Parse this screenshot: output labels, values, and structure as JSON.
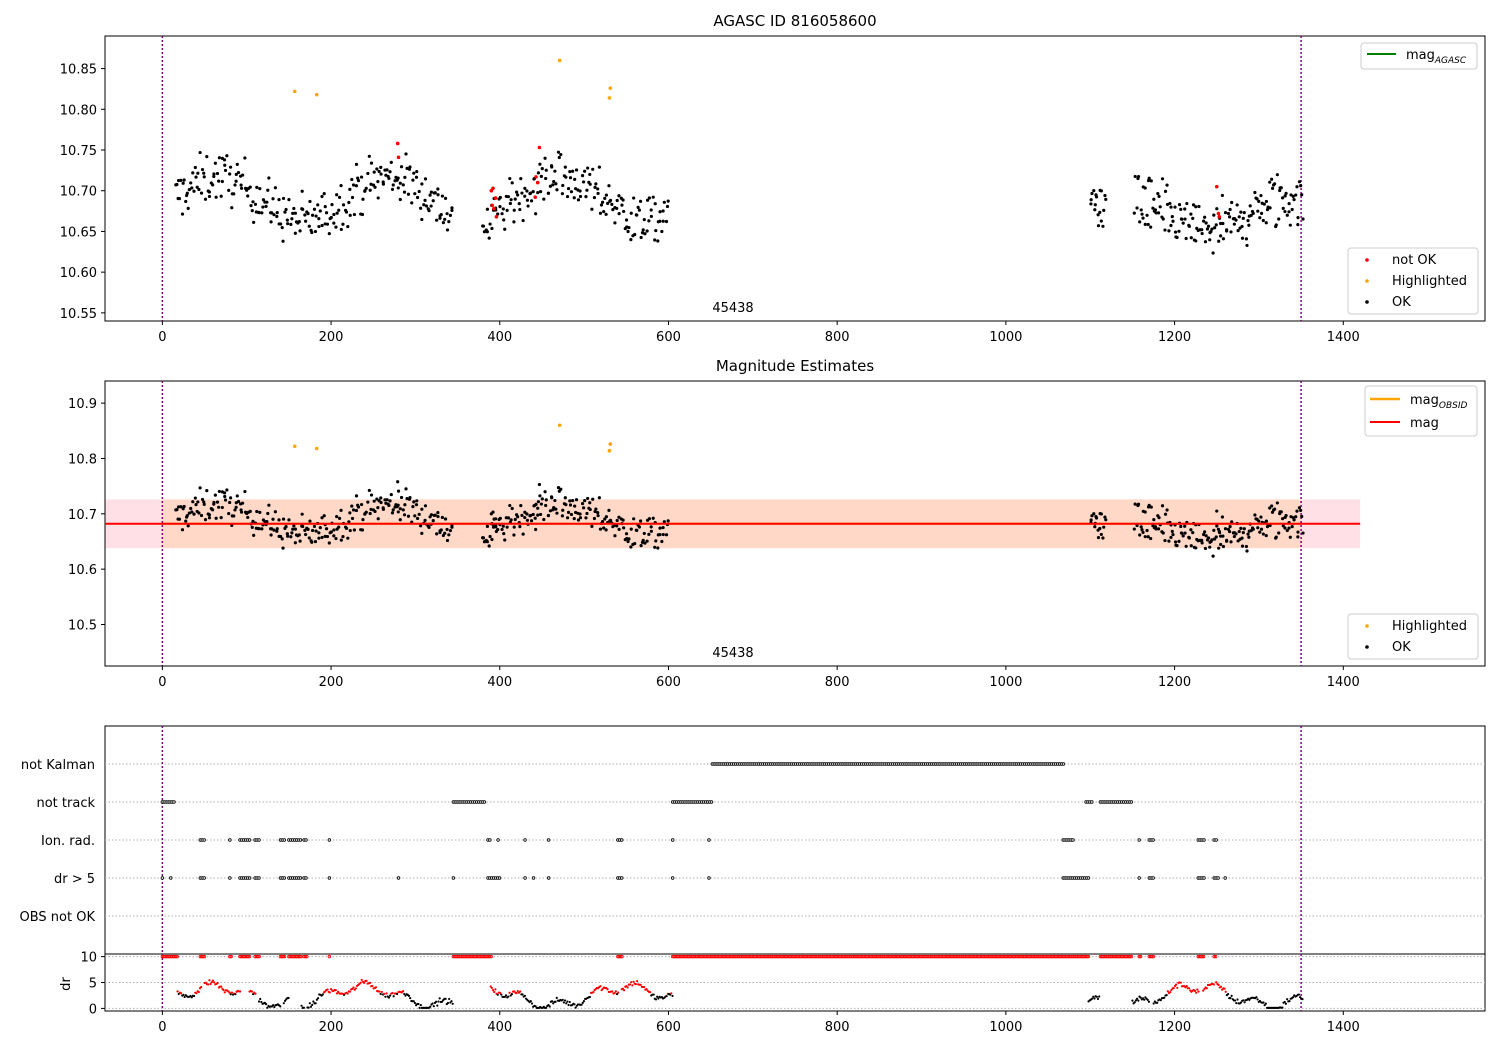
{
  "figure": {
    "title": "AGASC ID 816058600",
    "obsid_label": "45438"
  },
  "colors": {
    "ok": "#000000",
    "not_ok": "#ff0000",
    "highlighted": "#ffa500",
    "agasc_line": "#008000",
    "obsid_line": "#ffa500",
    "mag_line": "#ff0000",
    "mag_band_outer": "#ffe0e6",
    "mag_band_inner": "#ffd8c8",
    "obs_boundary": "#800080",
    "grid": "#b0b0b0"
  },
  "chart_data": [
    {
      "type": "scatter",
      "title": "AGASC ID 816058600",
      "xlim": [
        -68,
        1568
      ],
      "ylim": [
        10.54,
        10.89
      ],
      "xticks": [
        0,
        200,
        400,
        600,
        800,
        1000,
        1200,
        1400
      ],
      "yticks": [
        10.55,
        10.6,
        10.65,
        10.7,
        10.75,
        10.8,
        10.85
      ],
      "obs_boundaries": [
        0,
        1350
      ],
      "legend_lines": [
        {
          "label": "mag",
          "sub": "AGASC",
          "color": "#008000"
        }
      ],
      "legend_points": [
        {
          "label": "not OK",
          "color": "#ff0000"
        },
        {
          "label": "Highlighted",
          "color": "#ffa500"
        },
        {
          "label": "OK",
          "color": "#000000"
        }
      ],
      "segments": [
        {
          "x0": 15,
          "x1": 600,
          "mean": 10.69,
          "amp": 0.045,
          "spread": 0.028,
          "n": 460,
          "gaps": [
            [
              345,
              378
            ]
          ]
        },
        {
          "x0": 1100,
          "x1": 1118,
          "mean": 10.68,
          "amp": 0.01,
          "spread": 0.025,
          "n": 18,
          "gaps": []
        },
        {
          "x0": 1152,
          "x1": 1352,
          "mean": 10.67,
          "amp": 0.03,
          "spread": 0.032,
          "n": 170,
          "gaps": []
        }
      ],
      "highlighted_points": [
        {
          "x": 157,
          "y": 10.822
        },
        {
          "x": 183,
          "y": 10.818
        },
        {
          "x": 471,
          "y": 10.86
        },
        {
          "x": 531,
          "y": 10.826
        },
        {
          "x": 530,
          "y": 10.814
        }
      ],
      "not_ok_points": [
        {
          "x": 279,
          "y": 10.758
        },
        {
          "x": 280,
          "y": 10.741
        },
        {
          "x": 390,
          "y": 10.7
        },
        {
          "x": 392,
          "y": 10.703
        },
        {
          "x": 391,
          "y": 10.682
        },
        {
          "x": 393,
          "y": 10.678
        },
        {
          "x": 395,
          "y": 10.691
        },
        {
          "x": 396,
          "y": 10.668
        },
        {
          "x": 443,
          "y": 10.717
        },
        {
          "x": 445,
          "y": 10.71
        },
        {
          "x": 447,
          "y": 10.753
        },
        {
          "x": 442,
          "y": 10.692
        },
        {
          "x": 1250,
          "y": 10.705
        },
        {
          "x": 1252,
          "y": 10.672
        },
        {
          "x": 1253,
          "y": 10.668
        }
      ]
    },
    {
      "type": "scatter",
      "title": "Magnitude Estimates",
      "xlim": [
        -68,
        1568
      ],
      "ylim": [
        10.425,
        10.94
      ],
      "xticks": [
        0,
        200,
        400,
        600,
        800,
        1000,
        1200,
        1400
      ],
      "yticks": [
        10.5,
        10.6,
        10.7,
        10.8,
        10.9
      ],
      "obs_boundaries": [
        0,
        1350
      ],
      "mag": 10.682,
      "mag_band_outer": [
        10.638,
        10.726
      ],
      "mag_band_outer_x": [
        -68,
        1420
      ],
      "mag_band_inner": [
        10.638,
        10.726
      ],
      "mag_band_inner_x": [
        0,
        1350
      ],
      "mag_obsid": 10.682,
      "legend_lines": [
        {
          "label": "mag",
          "sub": "OBSID",
          "color": "#ffa500"
        },
        {
          "label": "mag",
          "sub": "",
          "color": "#ff0000"
        }
      ],
      "legend_points": [
        {
          "label": "Highlighted",
          "color": "#ffa500"
        },
        {
          "label": "OK",
          "color": "#000000"
        }
      ]
    },
    {
      "type": "scatter",
      "title": "",
      "xlim": [
        -68,
        1568
      ],
      "categories": [
        "not Kalman",
        "not track",
        "Ion. rad.",
        "dr > 5",
        "OBS not OK"
      ],
      "flag_runs": {
        "not Kalman": [
          [
            652,
            1070
          ]
        ],
        "not track": [
          [
            0,
            15
          ],
          [
            345,
            383
          ],
          [
            605,
            652
          ],
          [
            1095,
            1103
          ],
          [
            1112,
            1150
          ]
        ],
        "Ion. rad.": [
          [
            45,
            50
          ],
          [
            80,
            82
          ],
          [
            92,
            104
          ],
          [
            110,
            115
          ],
          [
            140,
            145
          ],
          [
            150,
            165
          ],
          [
            168,
            172
          ],
          [
            198,
            199
          ],
          [
            386,
            390
          ],
          [
            398,
            399
          ],
          [
            430,
            432
          ],
          [
            458,
            459
          ],
          [
            540,
            545
          ],
          [
            605,
            606
          ],
          [
            648,
            650
          ],
          [
            1068,
            1080
          ],
          [
            1158,
            1160
          ],
          [
            1170,
            1175
          ],
          [
            1228,
            1235
          ],
          [
            1247,
            1250
          ]
        ],
        "dr > 5": [
          [
            0,
            2
          ],
          [
            10,
            11
          ],
          [
            45,
            50
          ],
          [
            80,
            82
          ],
          [
            92,
            104
          ],
          [
            110,
            115
          ],
          [
            140,
            145
          ],
          [
            150,
            165
          ],
          [
            168,
            172
          ],
          [
            198,
            199
          ],
          [
            280,
            282
          ],
          [
            345,
            346
          ],
          [
            386,
            400
          ],
          [
            430,
            432
          ],
          [
            440,
            442
          ],
          [
            458,
            459
          ],
          [
            540,
            545
          ],
          [
            605,
            606
          ],
          [
            648,
            650
          ],
          [
            1068,
            1098
          ],
          [
            1158,
            1160
          ],
          [
            1170,
            1175
          ],
          [
            1228,
            1235
          ],
          [
            1247,
            1253
          ],
          [
            1260,
            1262
          ]
        ],
        "OBS not OK": []
      }
    },
    {
      "type": "scatter",
      "title": "",
      "ylabel": "dr",
      "xlim": [
        -68,
        1568
      ],
      "ylim": [
        -0.5,
        10.5
      ],
      "yticks": [
        0,
        5,
        10
      ],
      "xticks": [
        0,
        200,
        400,
        600,
        800,
        1000,
        1200,
        1400
      ],
      "dr_cap": 10,
      "dr_threshold": 5
    }
  ]
}
